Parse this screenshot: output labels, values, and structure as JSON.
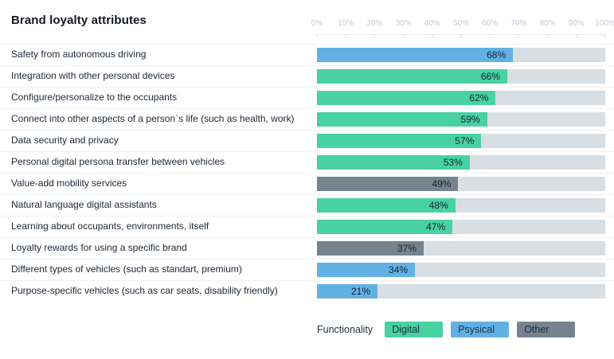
{
  "title": "Brand loyalty attributes",
  "axis": {
    "ticks": [
      "0%",
      "10%",
      "20%",
      "30%",
      "40%",
      "50%",
      "60%",
      "70%",
      "80%",
      "90%",
      "100%"
    ]
  },
  "colors": {
    "Digital": "#48d1a3",
    "Psysical": "#62b1e4",
    "Other": "#76838f",
    "track": "#d7dee4"
  },
  "rows": [
    {
      "label": "Safety from autonomous driving",
      "value": 68,
      "value_label": "68%",
      "category": "Psysical"
    },
    {
      "label": "Integration with other personal devices",
      "value": 66,
      "value_label": "66%",
      "category": "Digital"
    },
    {
      "label": "Configure/personalize to the occupants",
      "value": 62,
      "value_label": "62%",
      "category": "Digital"
    },
    {
      "label": "Connect into other aspects of a person`s life (such as health, work)",
      "value": 59,
      "value_label": "59%",
      "category": "Digital"
    },
    {
      "label": "Data security and privacy",
      "value": 57,
      "value_label": "57%",
      "category": "Digital"
    },
    {
      "label": "Personal digital persona transfer between vehicles",
      "value": 53,
      "value_label": "53%",
      "category": "Digital"
    },
    {
      "label": "Value-add mobility services",
      "value": 49,
      "value_label": "49%",
      "category": "Other"
    },
    {
      "label": "Natural language digital assistants",
      "value": 48,
      "value_label": "48%",
      "category": "Digital"
    },
    {
      "label": "Learning about occupants, environments, itself",
      "value": 47,
      "value_label": "47%",
      "category": "Digital"
    },
    {
      "label": "Loyalty rewards for using a specific brand",
      "value": 37,
      "value_label": "37%",
      "category": "Other"
    },
    {
      "label": "Different types of vehicles (such as standart, premium)",
      "value": 34,
      "value_label": "34%",
      "category": "Psysical"
    },
    {
      "label": "Purpose-specific vehicles (such as car seats, disability friendly)",
      "value": 21,
      "value_label": "21%",
      "category": "Psysical"
    }
  ],
  "legend": {
    "title": "Functionality",
    "items": [
      {
        "label": "Digital",
        "color": "#48d1a3"
      },
      {
        "label": "Psysical",
        "color": "#62b1e4"
      },
      {
        "label": "Other",
        "color": "#76838f"
      }
    ]
  },
  "chart_data": {
    "type": "bar",
    "orientation": "horizontal",
    "title": "Brand loyalty attributes",
    "categories": [
      "Safety from autonomous driving",
      "Integration with other personal devices",
      "Configure/personalize to the occupants",
      "Connect into other aspects of a person`s life (such as health, work)",
      "Data security and privacy",
      "Personal digital persona transfer between vehicles",
      "Value-add mobility services",
      "Natural language digital assistants",
      "Learning about occupants, environments, itself",
      "Loyalty rewards for using a specific brand",
      "Different types of vehicles (such as standart, premium)",
      "Purpose-specific vehicles (such as car seats, disability friendly)"
    ],
    "values": [
      68,
      66,
      62,
      59,
      57,
      53,
      49,
      48,
      47,
      37,
      34,
      21
    ],
    "bar_categories": [
      "Psysical",
      "Digital",
      "Digital",
      "Digital",
      "Digital",
      "Digital",
      "Other",
      "Digital",
      "Digital",
      "Other",
      "Psysical",
      "Psysical"
    ],
    "xlabel": "",
    "ylabel": "",
    "xlim": [
      0,
      100
    ],
    "x_ticks": [
      "0%",
      "10%",
      "20%",
      "30%",
      "40%",
      "50%",
      "60%",
      "70%",
      "80%",
      "90%",
      "100%"
    ],
    "grid": false,
    "data_labels": "inside-end",
    "legend": {
      "title": "Functionality",
      "entries": [
        "Digital",
        "Psysical",
        "Other"
      ],
      "position": "bottom"
    }
  }
}
